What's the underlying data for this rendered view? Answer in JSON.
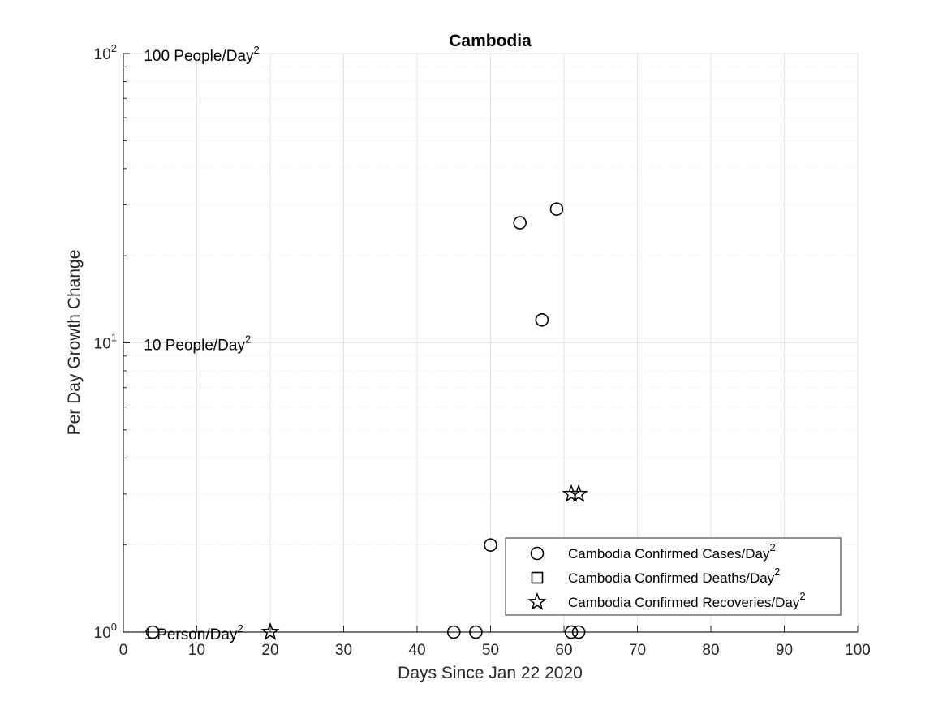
{
  "chart_data": {
    "type": "scatter",
    "title": "Cambodia",
    "xlabel": "Days Since Jan 22 2020",
    "ylabel": "Per Day Growth Change",
    "xlim": [
      0,
      100
    ],
    "ylim": [
      1,
      100
    ],
    "yscale": "log",
    "grid": true,
    "minor_grid": true,
    "x_ticks": [
      0,
      10,
      20,
      30,
      40,
      50,
      60,
      70,
      80,
      90,
      100
    ],
    "y_ticks": [
      {
        "value": 1,
        "base": "10",
        "exp": "0"
      },
      {
        "value": 10,
        "base": "10",
        "exp": "1"
      },
      {
        "value": 100,
        "base": "10",
        "exp": "2"
      }
    ],
    "annotations": [
      {
        "x": 2.8,
        "y": 100,
        "text": "100 People/Day",
        "sup": "2"
      },
      {
        "x": 2.8,
        "y": 10,
        "text": "10 People/Day",
        "sup": "2"
      },
      {
        "x": 2.8,
        "y": 1,
        "text": "1 Person/Day",
        "sup": "2"
      }
    ],
    "legend_position": "bottom-right",
    "series": [
      {
        "name": "Cambodia Confirmed Cases/Day",
        "name_sup": "2",
        "marker": "circle",
        "points": [
          [
            4,
            1
          ],
          [
            45,
            1
          ],
          [
            48,
            1
          ],
          [
            50,
            2
          ],
          [
            54,
            26
          ],
          [
            57,
            12
          ],
          [
            59,
            29
          ],
          [
            61,
            1
          ],
          [
            62,
            1
          ]
        ]
      },
      {
        "name": "Cambodia Confirmed Deaths/Day",
        "name_sup": "2",
        "marker": "square",
        "points": []
      },
      {
        "name": "Cambodia Confirmed Recoveries/Day",
        "name_sup": "2",
        "marker": "star",
        "points": [
          [
            20,
            1
          ],
          [
            61,
            3
          ],
          [
            62,
            3
          ]
        ]
      }
    ]
  }
}
